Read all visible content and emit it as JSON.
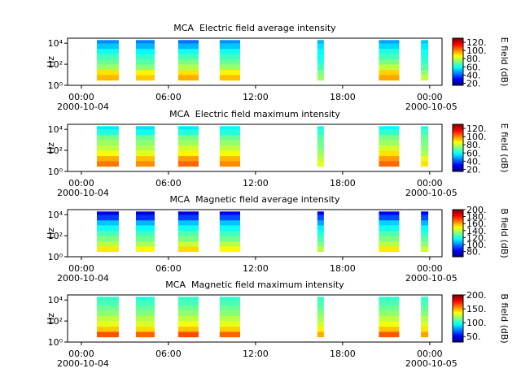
{
  "chart_data": [
    {
      "type": "heatmap",
      "title": "MCA  Electric field average intensity",
      "ylabel": "Hz",
      "clabel": "E field (dB)",
      "xlim": [
        -0.95,
        24.85
      ],
      "xticks": [
        {
          "value": 0,
          "label": "00:00"
        },
        {
          "value": 6,
          "label": "06:00"
        },
        {
          "value": 12,
          "label": "12:00"
        },
        {
          "value": 18,
          "label": "18:00"
        },
        {
          "value": 24,
          "label": "00:00"
        }
      ],
      "date_labels": [
        {
          "value": 0,
          "label": "2000-10-04"
        },
        {
          "value": 24,
          "label": "2000-10-05"
        }
      ],
      "ylim": [
        1,
        30000
      ],
      "log_y": true,
      "yticks": [
        {
          "value": 1,
          "label": "10⁰"
        },
        {
          "value": 100,
          "label": "10²"
        },
        {
          "value": 10000,
          "label": "10⁴"
        }
      ],
      "clim": [
        15,
        130
      ],
      "cticks": [
        {
          "value": 20,
          "label": "20."
        },
        {
          "value": 40,
          "label": "40."
        },
        {
          "value": 60,
          "label": "60."
        },
        {
          "value": 80,
          "label": "80."
        },
        {
          "value": 100,
          "label": "100."
        },
        {
          "value": 120,
          "label": "120."
        }
      ],
      "segments": [
        [
          1.07,
          2.58
        ],
        [
          3.76,
          5.05
        ],
        [
          6.67,
          8.08
        ],
        [
          9.53,
          10.94
        ],
        [
          16.26,
          16.71
        ],
        [
          20.5,
          21.9
        ],
        [
          23.4,
          23.9
        ]
      ],
      "bands": [
        3,
        10,
        30,
        100,
        300,
        1000,
        3000,
        10000,
        20000
      ],
      "values": [
        [
          95,
          90,
          76,
          70,
          66,
          60,
          52,
          45
        ],
        [
          93,
          88,
          74,
          68,
          64,
          58,
          50,
          44
        ],
        [
          96,
          90,
          78,
          72,
          66,
          60,
          50,
          42
        ],
        [
          94,
          88,
          76,
          70,
          65,
          60,
          52,
          46
        ],
        [
          75,
          72,
          66,
          62,
          60,
          58,
          55,
          50
        ],
        [
          97,
          92,
          80,
          72,
          66,
          62,
          54,
          48
        ],
        [
          80,
          74,
          68,
          64,
          62,
          60,
          56,
          52
        ]
      ]
    },
    {
      "type": "heatmap",
      "title": "MCA  Electric field maximum intensity",
      "ylabel": "Hz",
      "clabel": "E field (dB)",
      "xlim": [
        -0.95,
        24.85
      ],
      "xticks": [
        {
          "value": 0,
          "label": "00:00"
        },
        {
          "value": 6,
          "label": "06:00"
        },
        {
          "value": 12,
          "label": "12:00"
        },
        {
          "value": 18,
          "label": "18:00"
        },
        {
          "value": 24,
          "label": "00:00"
        }
      ],
      "date_labels": [
        {
          "value": 0,
          "label": "2000-10-04"
        },
        {
          "value": 24,
          "label": "2000-10-05"
        }
      ],
      "ylim": [
        1,
        30000
      ],
      "log_y": true,
      "yticks": [
        {
          "value": 1,
          "label": "10⁰"
        },
        {
          "value": 100,
          "label": "10²"
        },
        {
          "value": 10000,
          "label": "10⁴"
        }
      ],
      "clim": [
        15,
        130
      ],
      "cticks": [
        {
          "value": 20,
          "label": "20."
        },
        {
          "value": 40,
          "label": "40."
        },
        {
          "value": 60,
          "label": "60."
        },
        {
          "value": 80,
          "label": "80."
        },
        {
          "value": 100,
          "label": "100."
        },
        {
          "value": 120,
          "label": "120."
        }
      ],
      "segments": [
        [
          1.07,
          2.58
        ],
        [
          3.76,
          5.05
        ],
        [
          6.67,
          8.08
        ],
        [
          9.53,
          10.94
        ],
        [
          16.26,
          16.71
        ],
        [
          20.5,
          21.9
        ],
        [
          23.4,
          23.9
        ]
      ],
      "bands": [
        3,
        10,
        30,
        100,
        300,
        1000,
        3000,
        10000,
        20000
      ],
      "values": [
        [
          102,
          96,
          86,
          80,
          76,
          72,
          62,
          56
        ],
        [
          100,
          94,
          84,
          78,
          74,
          70,
          60,
          55
        ],
        [
          104,
          98,
          88,
          82,
          76,
          72,
          62,
          56
        ],
        [
          100,
          95,
          86,
          80,
          75,
          70,
          62,
          58
        ],
        [
          84,
          80,
          76,
          72,
          70,
          68,
          64,
          60
        ],
        [
          104,
          98,
          90,
          82,
          76,
          72,
          64,
          58
        ],
        [
          90,
          84,
          78,
          74,
          72,
          70,
          66,
          62
        ]
      ]
    },
    {
      "type": "heatmap",
      "title": "MCA  Magnetic field average intensity",
      "ylabel": "Hz",
      "clabel": "B field (dB)",
      "xlim": [
        -0.95,
        24.85
      ],
      "xticks": [
        {
          "value": 0,
          "label": "00:00"
        },
        {
          "value": 6,
          "label": "06:00"
        },
        {
          "value": 12,
          "label": "12:00"
        },
        {
          "value": 18,
          "label": "18:00"
        },
        {
          "value": 24,
          "label": "00:00"
        }
      ],
      "date_labels": [
        {
          "value": 0,
          "label": "2000-10-04"
        },
        {
          "value": 24,
          "label": "2000-10-05"
        }
      ],
      "ylim": [
        1,
        30000
      ],
      "log_y": true,
      "yticks": [
        {
          "value": 1,
          "label": "10⁰"
        },
        {
          "value": 100,
          "label": "10²"
        },
        {
          "value": 10000,
          "label": "10⁴"
        }
      ],
      "clim": [
        65,
        200
      ],
      "cticks": [
        {
          "value": 80,
          "label": "80."
        },
        {
          "value": 100,
          "label": "100."
        },
        {
          "value": 120,
          "label": "120."
        },
        {
          "value": 140,
          "label": "140."
        },
        {
          "value": 160,
          "label": "160."
        },
        {
          "value": 180,
          "label": "180."
        },
        {
          "value": 200,
          "label": "200."
        }
      ],
      "segments": [
        [
          1.07,
          2.58
        ],
        [
          3.76,
          5.05
        ],
        [
          6.67,
          8.08
        ],
        [
          9.53,
          10.94
        ],
        [
          16.26,
          16.71
        ],
        [
          20.5,
          21.9
        ],
        [
          23.4,
          23.9
        ]
      ],
      "bands": [
        3,
        10,
        30,
        100,
        300,
        1000,
        3000,
        10000,
        20000
      ],
      "values": [
        [
          152,
          140,
          132,
          125,
          118,
          108,
          90,
          78
        ],
        [
          150,
          138,
          130,
          124,
          116,
          106,
          88,
          76
        ],
        [
          154,
          142,
          132,
          126,
          118,
          108,
          90,
          78
        ],
        [
          150,
          140,
          130,
          124,
          117,
          108,
          92,
          80
        ],
        [
          140,
          132,
          126,
          120,
          114,
          104,
          92,
          80
        ],
        [
          152,
          140,
          132,
          126,
          118,
          110,
          92,
          80
        ],
        [
          142,
          134,
          128,
          122,
          116,
          106,
          92,
          80
        ]
      ]
    },
    {
      "type": "heatmap",
      "title": "MCA  Magnetic field maximum intensity",
      "ylabel": "Hz",
      "clabel": "B field (dB)",
      "xlim": [
        -0.95,
        24.85
      ],
      "xticks": [
        {
          "value": 0,
          "label": "00:00"
        },
        {
          "value": 6,
          "label": "06:00"
        },
        {
          "value": 12,
          "label": "12:00"
        },
        {
          "value": 18,
          "label": "18:00"
        },
        {
          "value": 24,
          "label": "00:00"
        }
      ],
      "date_labels": [
        {
          "value": 0,
          "label": "2000-10-04"
        },
        {
          "value": 24,
          "label": "2000-10-05"
        }
      ],
      "ylim": [
        1,
        30000
      ],
      "log_y": true,
      "yticks": [
        {
          "value": 1,
          "label": "10⁰"
        },
        {
          "value": 100,
          "label": "10²"
        },
        {
          "value": 10000,
          "label": "10⁴"
        }
      ],
      "clim": [
        30,
        200
      ],
      "cticks": [
        {
          "value": 50,
          "label": "50."
        },
        {
          "value": 100,
          "label": "100."
        },
        {
          "value": 150,
          "label": "150."
        },
        {
          "value": 200,
          "label": "200."
        }
      ],
      "segments": [
        [
          1.07,
          2.58
        ],
        [
          3.76,
          5.05
        ],
        [
          6.67,
          8.08
        ],
        [
          9.53,
          10.94
        ],
        [
          16.26,
          16.71
        ],
        [
          20.5,
          21.9
        ],
        [
          23.4,
          23.9
        ]
      ],
      "bands": [
        3,
        10,
        30,
        100,
        300,
        1000,
        3000,
        10000,
        20000
      ],
      "values": [
        [
          165,
          145,
          132,
          126,
          118,
          112,
          106,
          102
        ],
        [
          162,
          142,
          130,
          124,
          116,
          110,
          105,
          100
        ],
        [
          166,
          146,
          134,
          126,
          118,
          112,
          106,
          102
        ],
        [
          162,
          144,
          132,
          125,
          117,
          112,
          106,
          102
        ],
        [
          150,
          138,
          128,
          122,
          116,
          110,
          106,
          102
        ],
        [
          164,
          146,
          134,
          126,
          118,
          112,
          106,
          102
        ],
        [
          152,
          140,
          130,
          124,
          116,
          110,
          106,
          102
        ]
      ]
    }
  ]
}
